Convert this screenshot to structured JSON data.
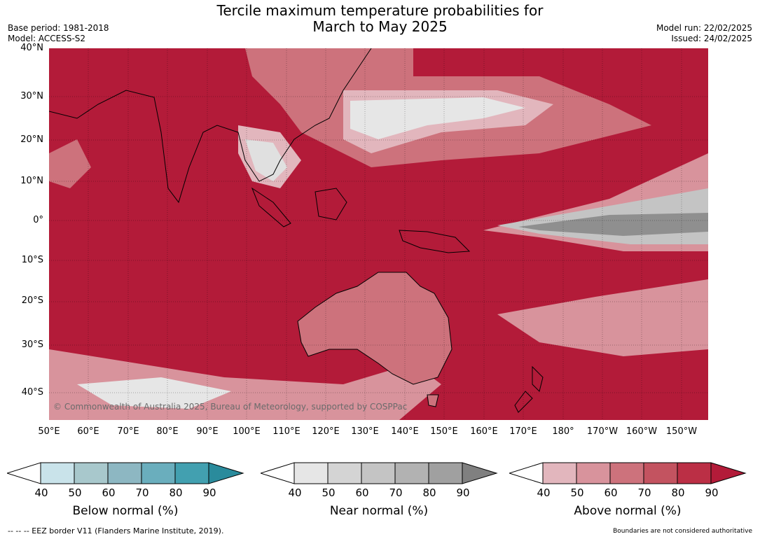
{
  "title_line1": "Tercile maximum temperature probabilities for",
  "title_line2": "March to May 2025",
  "meta_left": {
    "base_period": "Base period: 1981-2018",
    "model": "Model: ACCESS-S2"
  },
  "meta_right": {
    "model_run": "Model run: 22/02/2025",
    "issued": "Issued: 24/02/2025"
  },
  "lat_labels": [
    "40°N",
    "30°N",
    "20°N",
    "10°N",
    "0°",
    "10°S",
    "20°S",
    "30°S",
    "40°S"
  ],
  "lon_labels": [
    "50°E",
    "60°E",
    "70°E",
    "80°E",
    "90°E",
    "100°E",
    "110°E",
    "120°E",
    "130°E",
    "140°E",
    "150°E",
    "160°E",
    "170°E",
    "180°",
    "170°W",
    "160°W",
    "150°W"
  ],
  "credit": "© Commonwealth of Australia 2025, Bureau of Meteorology, supported by COSPPac",
  "colorbars": [
    {
      "label": "Below normal (%)",
      "ticks": [
        "40",
        "50",
        "60",
        "70",
        "80",
        "90"
      ],
      "colors": [
        "#ffffff",
        "#c9e3ea",
        "#a8c8cc",
        "#8db7c2",
        "#6aaebd",
        "#42a0b0",
        "#2a8b9c"
      ]
    },
    {
      "label": "Near normal (%)",
      "ticks": [
        "40",
        "50",
        "60",
        "70",
        "80",
        "90"
      ],
      "colors": [
        "#ffffff",
        "#e6e6e6",
        "#d4d4d4",
        "#c4c4c4",
        "#b2b2b2",
        "#a0a0a0",
        "#808080"
      ]
    },
    {
      "label": "Above normal (%)",
      "ticks": [
        "40",
        "50",
        "60",
        "70",
        "80",
        "90"
      ],
      "colors": [
        "#ffffff",
        "#e2b6bd",
        "#d8939c",
        "#cd727c",
        "#c35360",
        "#bb2f45",
        "#b31b39"
      ]
    }
  ],
  "footer_left": "--  --  -- EEZ border V11 (Flanders Marine Institute, 2019).",
  "footer_right": "Boundaries are not considered authoritative"
}
